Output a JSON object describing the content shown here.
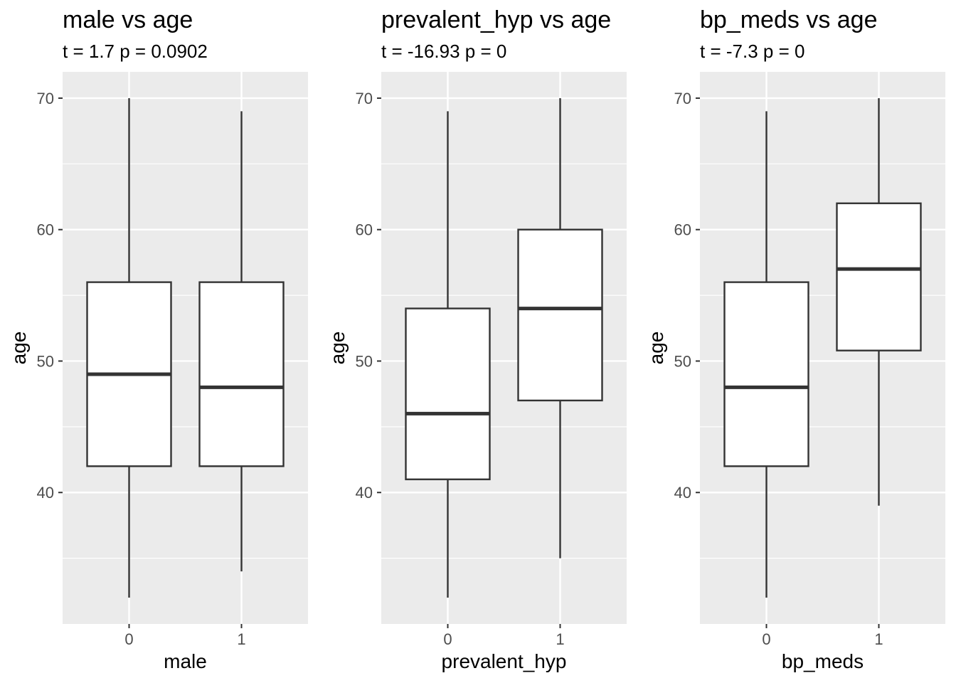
{
  "chart_data": [
    {
      "type": "boxplot",
      "title": "male vs age",
      "subtitle": "t = 1.7 p = 0.0902",
      "xlabel": "male",
      "ylabel": "age",
      "categories": [
        "0",
        "1"
      ],
      "ylim": [
        30,
        72
      ],
      "yticks": [
        40,
        50,
        60,
        70
      ],
      "grid": true,
      "boxes": [
        {
          "category": "0",
          "whisker_low": 32,
          "q1": 42,
          "median": 49,
          "q3": 56,
          "whisker_high": 70
        },
        {
          "category": "1",
          "whisker_low": 34,
          "q1": 42,
          "median": 48,
          "q3": 56,
          "whisker_high": 69
        }
      ]
    },
    {
      "type": "boxplot",
      "title": "prevalent_hyp vs age",
      "subtitle": "t = -16.93 p = 0",
      "xlabel": "prevalent_hyp",
      "ylabel": "age",
      "categories": [
        "0",
        "1"
      ],
      "ylim": [
        30,
        72
      ],
      "yticks": [
        40,
        50,
        60,
        70
      ],
      "grid": true,
      "boxes": [
        {
          "category": "0",
          "whisker_low": 32,
          "q1": 41,
          "median": 46,
          "q3": 54,
          "whisker_high": 69
        },
        {
          "category": "1",
          "whisker_low": 35,
          "q1": 47,
          "median": 54,
          "q3": 60,
          "whisker_high": 70
        }
      ]
    },
    {
      "type": "boxplot",
      "title": "bp_meds vs age",
      "subtitle": "t = -7.3 p = 0",
      "xlabel": "bp_meds",
      "ylabel": "age",
      "categories": [
        "0",
        "1"
      ],
      "ylim": [
        30,
        72
      ],
      "yticks": [
        40,
        50,
        60,
        70
      ],
      "grid": true,
      "boxes": [
        {
          "category": "0",
          "whisker_low": 32,
          "q1": 42,
          "median": 48,
          "q3": 56,
          "whisker_high": 69
        },
        {
          "category": "1",
          "whisker_low": 39,
          "q1": 50.8,
          "median": 57,
          "q3": 62,
          "whisker_high": 70
        }
      ]
    }
  ]
}
